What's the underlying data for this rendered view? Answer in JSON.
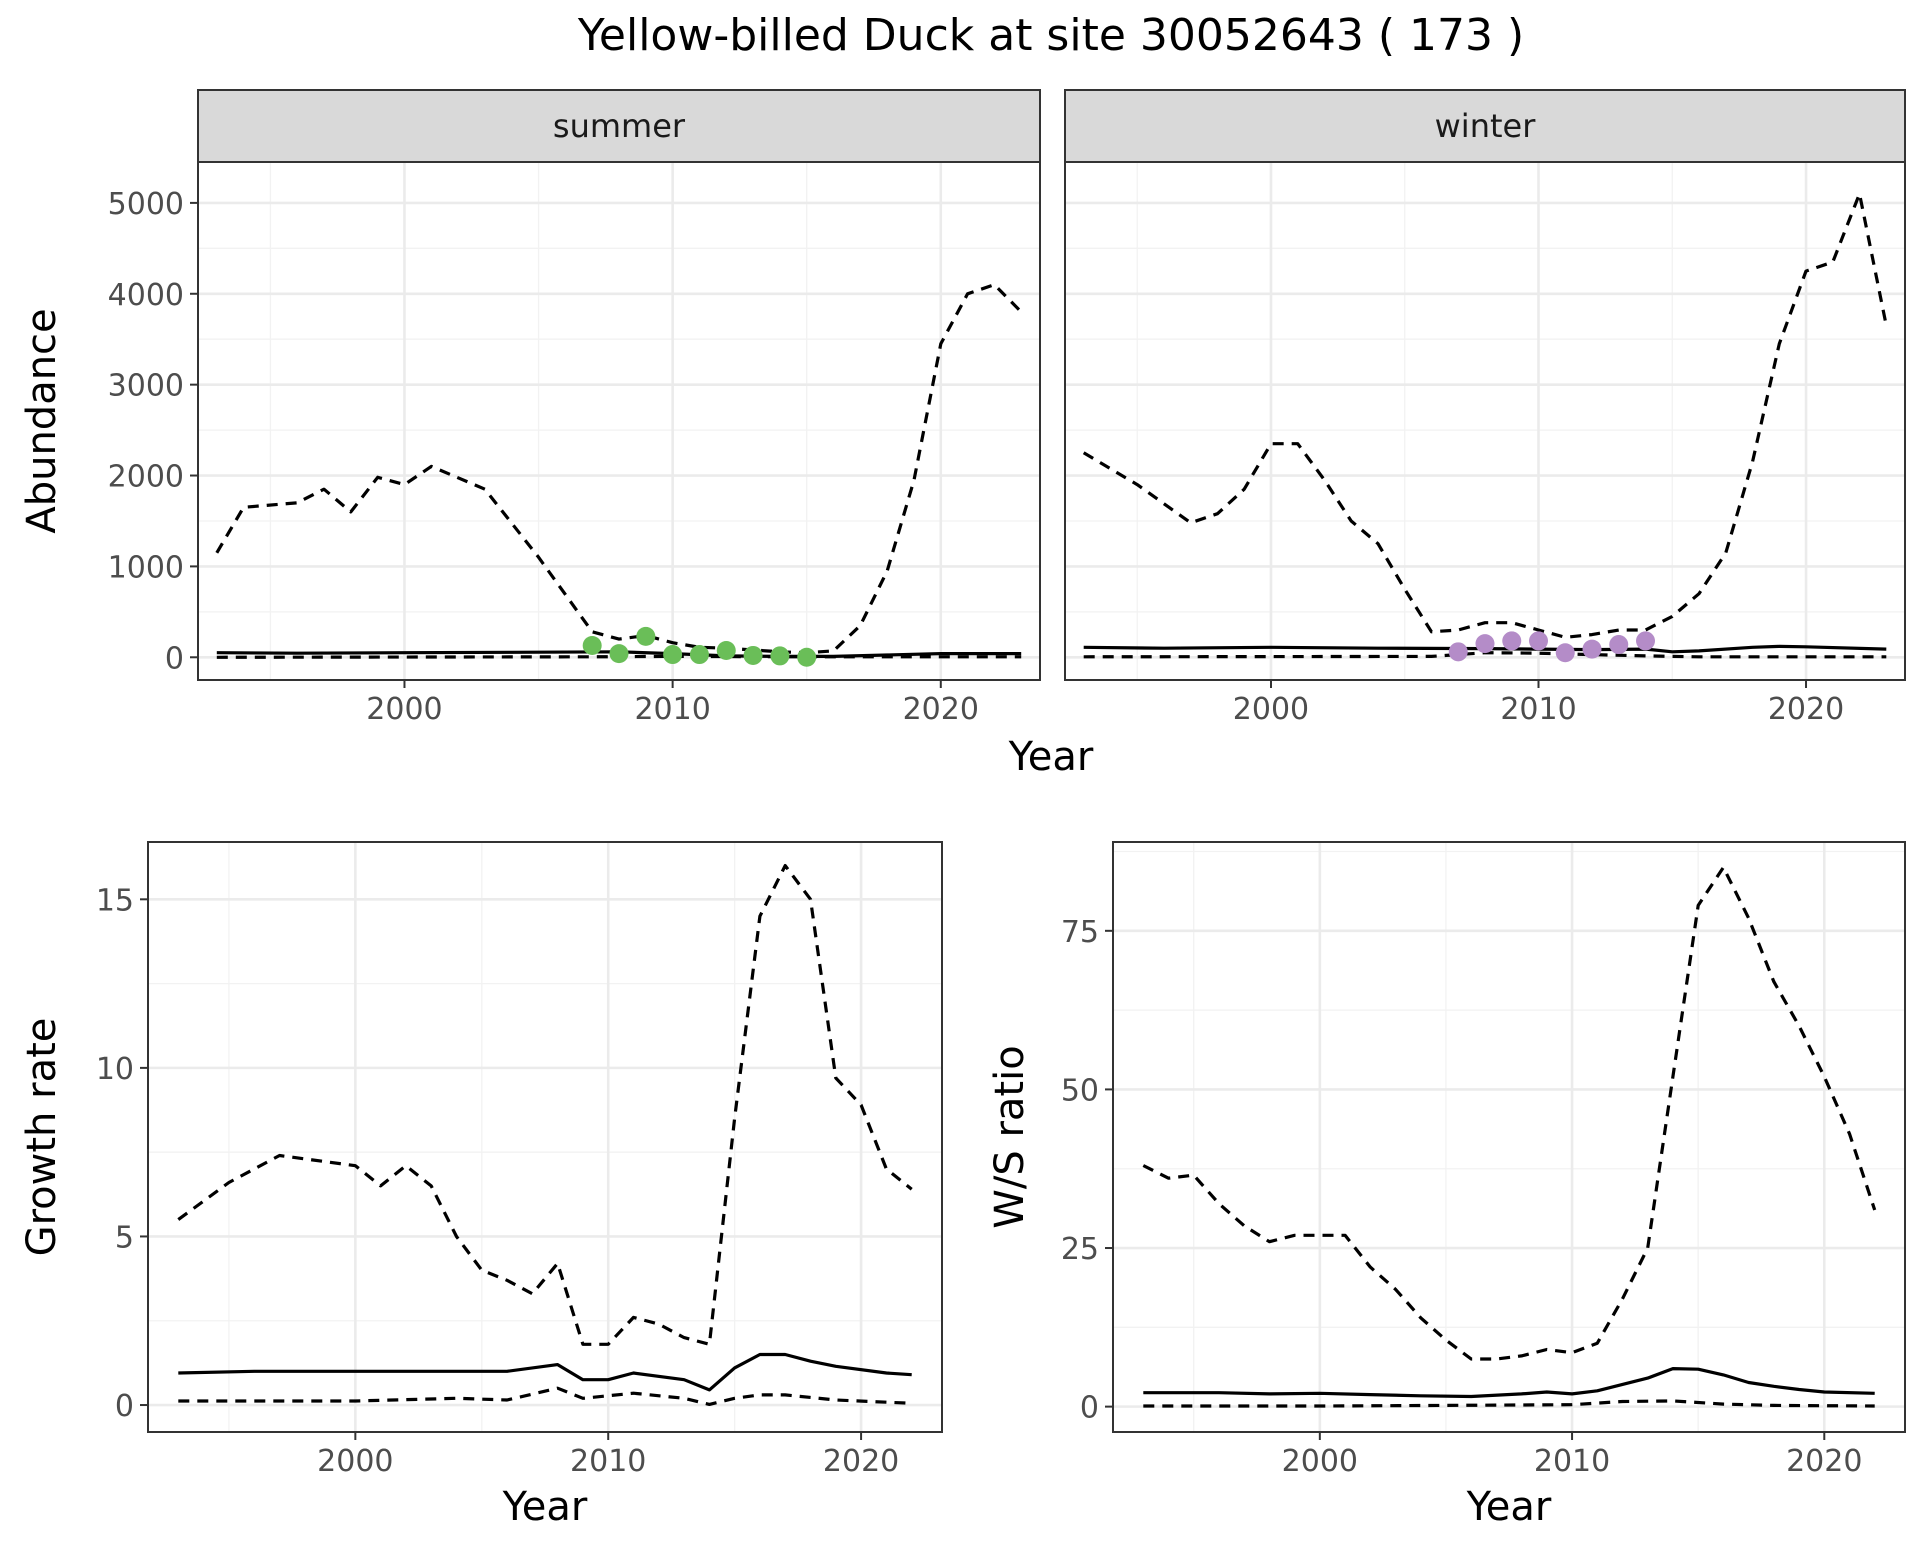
{
  "chart_data": {
    "title": "Yellow-billed Duck at site 30052643 ( 173 )",
    "panels": [
      {
        "type": "line",
        "strip": "summer",
        "xlabel": "Year",
        "ylabel": "Abundance",
        "xlim": [
          1992.3,
          2023.7
        ],
        "ylim": [
          -250,
          5450
        ],
        "xticks": [
          2000,
          2010,
          2020
        ],
        "yticks": [
          0,
          1000,
          2000,
          3000,
          4000,
          5000
        ],
        "xminor": [
          1995,
          2005,
          2015
        ],
        "yminor": [
          500,
          1500,
          2500,
          3500,
          4500
        ],
        "point_color": "#6abe58",
        "series": [
          {
            "style": "solid",
            "x": [
              1993,
              1996,
              2000,
              2004,
              2008,
              2010,
              2012,
              2014,
              2016,
              2018,
              2020,
              2023
            ],
            "y": [
              50,
              45,
              50,
              55,
              60,
              40,
              15,
              10,
              10,
              25,
              40,
              40
            ]
          },
          {
            "style": "dashed",
            "x": [
              1993,
              2007,
              2010,
              2015,
              2023
            ],
            "y": [
              0,
              5,
              10,
              5,
              5
            ]
          },
          {
            "style": "dashed",
            "x": [
              1993,
              1994,
              1996,
              1997,
              1998,
              1999,
              2000,
              2001,
              2003,
              2005,
              2007,
              2008,
              2009,
              2010,
              2011,
              2012,
              2013,
              2014,
              2015,
              2016,
              2017,
              2018,
              2019,
              2020,
              2021,
              2022,
              2023
            ],
            "y": [
              1150,
              1650,
              1700,
              1850,
              1600,
              1980,
              1900,
              2100,
              1850,
              1100,
              280,
              200,
              240,
              160,
              110,
              100,
              80,
              60,
              50,
              70,
              350,
              950,
              1950,
              3450,
              4000,
              4100,
              3800
            ]
          }
        ],
        "points": {
          "x": [
            2007,
            2008,
            2009,
            2010,
            2011,
            2012,
            2013,
            2014,
            2015
          ],
          "y": [
            130,
            40,
            230,
            30,
            30,
            75,
            20,
            15,
            0
          ]
        }
      },
      {
        "type": "line",
        "strip": "winter",
        "xlabel": "",
        "ylabel": "",
        "xlim": [
          1992.3,
          2023.7
        ],
        "ylim": [
          -250,
          5450
        ],
        "xticks": [
          2000,
          2010,
          2020
        ],
        "yticks": [],
        "xminor": [
          1995,
          2005,
          2015
        ],
        "yminor": [
          500,
          1500,
          2500,
          3500,
          4500
        ],
        "ygrid": [
          0,
          1000,
          2000,
          3000,
          4000,
          5000
        ],
        "point_color": "#b48cc8",
        "series": [
          {
            "style": "solid",
            "x": [
              1993,
              1996,
              2000,
              2004,
              2008,
              2012,
              2014,
              2015,
              2016,
              2018,
              2019,
              2020,
              2023
            ],
            "y": [
              110,
              100,
              110,
              100,
              95,
              85,
              90,
              60,
              70,
              110,
              120,
              115,
              90
            ]
          },
          {
            "style": "dashed",
            "x": [
              1993,
              2006,
              2008,
              2010,
              2012,
              2014,
              2016,
              2023
            ],
            "y": [
              5,
              10,
              50,
              45,
              30,
              15,
              5,
              5
            ]
          },
          {
            "style": "dashed",
            "x": [
              1993,
              1995,
              1997,
              1998,
              1999,
              2000,
              2001,
              2002,
              2003,
              2004,
              2005,
              2006,
              2007,
              2008,
              2009,
              2010,
              2011,
              2012,
              2013,
              2014,
              2015,
              2016,
              2017,
              2018,
              2019,
              2020,
              2021,
              2022,
              2023
            ],
            "y": [
              2250,
              1900,
              1480,
              1580,
              1850,
              2350,
              2350,
              1950,
              1500,
              1250,
              750,
              280,
              300,
              380,
              380,
              300,
              220,
              250,
              300,
              300,
              450,
              700,
              1150,
              2150,
              3450,
              4250,
              4350,
              5100,
              3650
            ]
          }
        ],
        "points": {
          "x": [
            2007,
            2008,
            2009,
            2010,
            2011,
            2012,
            2013,
            2014
          ],
          "y": [
            60,
            150,
            180,
            180,
            50,
            90,
            140,
            180
          ]
        }
      },
      {
        "type": "line",
        "strip": "",
        "xlabel": "Year",
        "ylabel": "Growth rate",
        "xlim": [
          1991.8,
          2023.2
        ],
        "ylim": [
          -0.8,
          16.7
        ],
        "xticks": [
          2000,
          2010,
          2020
        ],
        "yticks": [
          0,
          5,
          10,
          15
        ],
        "xminor": [
          1995,
          2005,
          2015
        ],
        "yminor": [
          2.5,
          7.5,
          12.5
        ],
        "series": [
          {
            "style": "solid",
            "x": [
              1993,
              1996,
              1998,
              2000,
              2002,
              2004,
              2006,
              2008,
              2009,
              2010,
              2011,
              2013,
              2014,
              2015,
              2016,
              2017,
              2018,
              2019,
              2021,
              2022
            ],
            "y": [
              0.95,
              1.0,
              1.0,
              1.0,
              1.0,
              1.0,
              1.0,
              1.2,
              0.75,
              0.75,
              0.95,
              0.75,
              0.45,
              1.1,
              1.5,
              1.5,
              1.3,
              1.15,
              0.95,
              0.9
            ]
          },
          {
            "style": "dashed",
            "x": [
              1993,
              1995,
              2000,
              2004,
              2006,
              2008,
              2009,
              2011,
              2013,
              2014,
              2015,
              2016,
              2017,
              2019,
              2022
            ],
            "y": [
              0.12,
              0.12,
              0.12,
              0.2,
              0.15,
              0.5,
              0.2,
              0.35,
              0.2,
              0.02,
              0.2,
              0.3,
              0.3,
              0.15,
              0.05
            ]
          },
          {
            "style": "dashed",
            "x": [
              1993,
              1995,
              1997,
              1999,
              2000,
              2001,
              2002,
              2003,
              2004,
              2005,
              2006,
              2007,
              2008,
              2009,
              2010,
              2011,
              2012,
              2013,
              2014,
              2015,
              2016,
              2017,
              2018,
              2019,
              2020,
              2021,
              2022
            ],
            "y": [
              5.5,
              6.6,
              7.4,
              7.2,
              7.1,
              6.5,
              7.1,
              6.5,
              5.0,
              4.0,
              3.7,
              3.3,
              4.2,
              1.8,
              1.8,
              2.6,
              2.4,
              2.0,
              1.8,
              8.5,
              14.5,
              16.0,
              15.0,
              9.7,
              8.9,
              7.0,
              6.4
            ]
          }
        ]
      },
      {
        "type": "line",
        "strip": "",
        "xlabel": "Year",
        "ylabel": "W/S ratio",
        "xlim": [
          1991.8,
          2023.2
        ],
        "ylim": [
          -4,
          89
        ],
        "xticks": [
          2000,
          2010,
          2020
        ],
        "yticks": [
          0,
          25,
          50,
          75
        ],
        "xminor": [
          1995,
          2005,
          2015
        ],
        "yminor": [
          12.5,
          37.5,
          62.5,
          87.5
        ],
        "series": [
          {
            "style": "solid",
            "x": [
              1993,
              1996,
              1998,
              2000,
              2002,
              2004,
              2006,
              2008,
              2009,
              2010,
              2011,
              2012,
              2013,
              2014,
              2015,
              2016,
              2017,
              2018,
              2019,
              2020,
              2022
            ],
            "y": [
              2.2,
              2.2,
              2.0,
              2.1,
              1.9,
              1.7,
              1.6,
              2.0,
              2.3,
              2.0,
              2.5,
              3.5,
              4.5,
              6.0,
              5.9,
              5.0,
              3.8,
              3.2,
              2.7,
              2.3,
              2.1
            ]
          },
          {
            "style": "dashed",
            "x": [
              1993,
              2000,
              2005,
              2010,
              2012,
              2014,
              2016,
              2018,
              2022
            ],
            "y": [
              0.1,
              0.1,
              0.2,
              0.3,
              0.8,
              0.9,
              0.4,
              0.2,
              0.1
            ]
          },
          {
            "style": "dashed",
            "x": [
              1993,
              1994,
              1995,
              1996,
              1997,
              1998,
              1999,
              2000,
              2001,
              2002,
              2003,
              2004,
              2005,
              2006,
              2007,
              2008,
              2009,
              2010,
              2011,
              2012,
              2013,
              2014,
              2015,
              2016,
              2017,
              2018,
              2019,
              2020,
              2021,
              2022
            ],
            "y": [
              38,
              36,
              36.5,
              32,
              28.5,
              26,
              27,
              27,
              27,
              22,
              18.5,
              14,
              10.5,
              7.5,
              7.5,
              8,
              9,
              8.5,
              10,
              17,
              25,
              52,
              79,
              85,
              77,
              67,
              60,
              52,
              43,
              31
            ]
          }
        ]
      }
    ]
  }
}
